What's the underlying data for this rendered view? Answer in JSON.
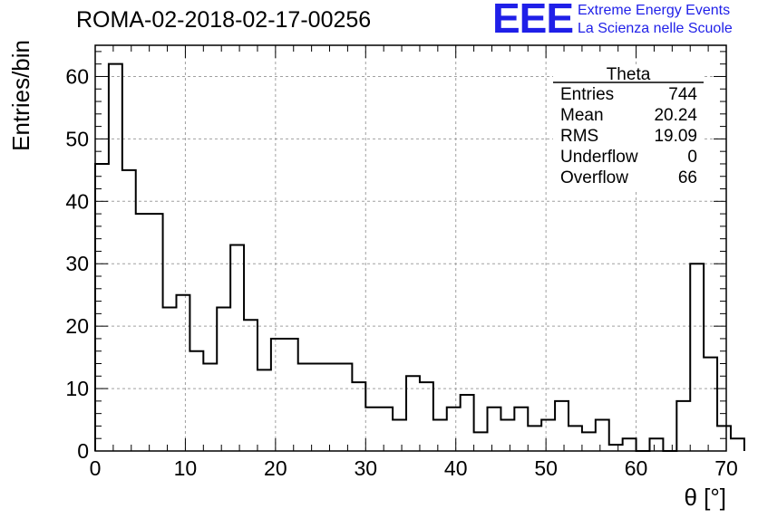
{
  "header": {
    "run_title": "ROMA-02-2018-02-17-00256",
    "logo_mark": "EEE",
    "logo_line1": "Extreme Energy Events",
    "logo_line2": "La Scienza nelle Scuole"
  },
  "stats_box": {
    "title": "Theta",
    "rows": [
      {
        "label": "Entries",
        "value": "744"
      },
      {
        "label": "Mean",
        "value": "20.24"
      },
      {
        "label": "RMS",
        "value": "19.09"
      },
      {
        "label": "Underflow",
        "value": "0"
      },
      {
        "label": "Overflow",
        "value": "66"
      }
    ]
  },
  "chart_data": {
    "type": "bar",
    "style": "step-histogram",
    "title": "ROMA-02-2018-02-17-00256",
    "xlabel": "θ [°]",
    "ylabel": "Entries/bin",
    "xlim": [
      0,
      70
    ],
    "ylim": [
      0,
      65
    ],
    "x_ticks": [
      0,
      10,
      20,
      30,
      40,
      50,
      60,
      70
    ],
    "y_ticks": [
      0,
      10,
      20,
      30,
      40,
      50,
      60
    ],
    "grid": true,
    "bin_width": 1.5,
    "bin_edges_start": 0,
    "values": [
      46,
      62,
      45,
      38,
      38,
      23,
      25,
      16,
      14,
      23,
      33,
      21,
      13,
      18,
      18,
      14,
      14,
      14,
      14,
      11,
      7,
      7,
      5,
      12,
      11,
      5,
      7,
      9,
      3,
      7,
      5,
      7,
      4,
      5,
      8,
      4,
      3,
      5,
      1,
      2,
      0,
      2,
      0,
      8,
      30,
      15,
      4,
      2
    ],
    "line_color": "#000000",
    "grid_color": "#a0a0a0"
  }
}
